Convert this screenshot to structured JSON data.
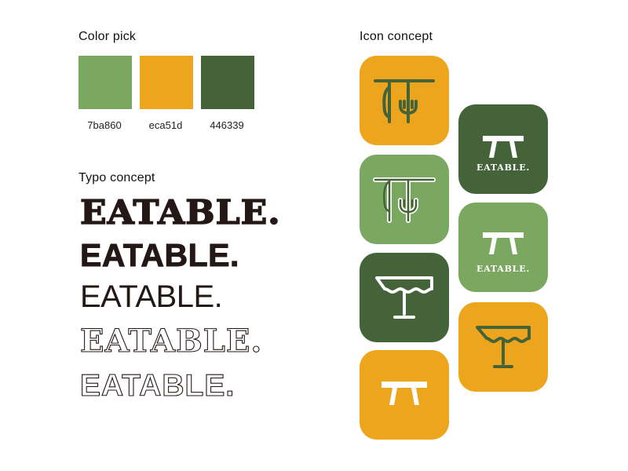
{
  "headings": {
    "color_pick": "Color pick",
    "typo_concept": "Typo concept",
    "icon_concept": "Icon concept"
  },
  "colors": [
    {
      "hex_label": "7ba860",
      "hex": "#7ba860"
    },
    {
      "hex_label": "eca51d",
      "hex": "#eca51d"
    },
    {
      "hex_label": "446339",
      "hex": "#446339"
    }
  ],
  "typo": {
    "wordmark_1": "EATABLE.",
    "wordmark_2": "EATABLE.",
    "wordmark_3": "EATABLE.",
    "wordmark_4": "EATABLE.",
    "wordmark_5": "EATABLE."
  },
  "icons": {
    "tile_wordmark_1": "EATABLE.",
    "tile_wordmark_2": "EATABLE."
  }
}
